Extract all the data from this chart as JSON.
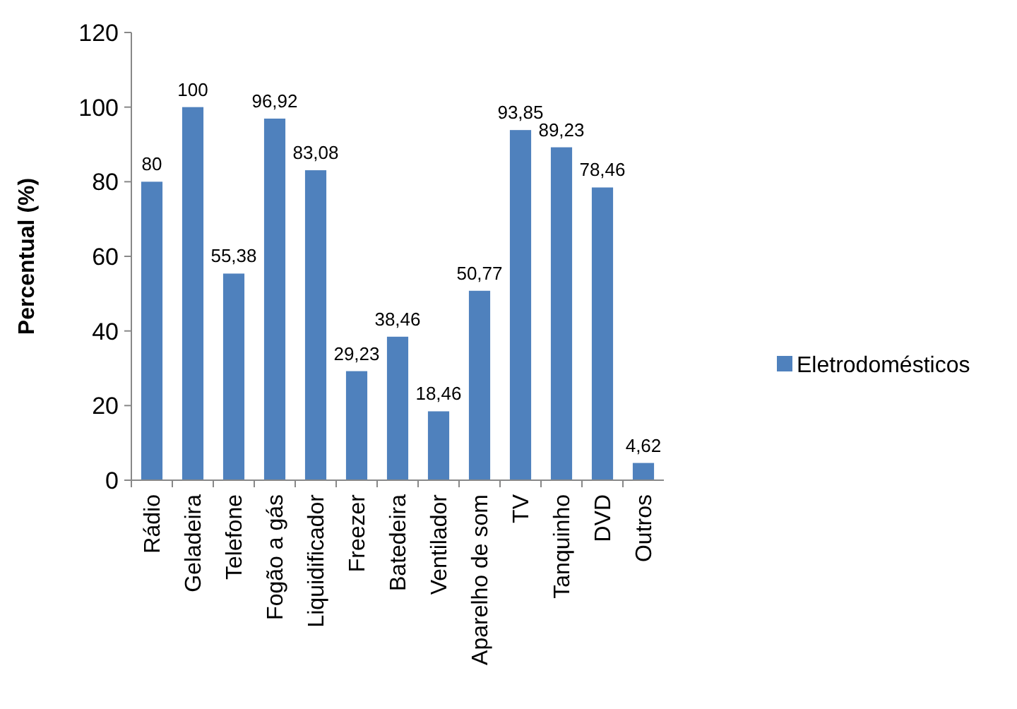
{
  "chart_data": {
    "type": "bar",
    "ylabel": "Percentual (%)",
    "categories": [
      "Rádio",
      "Geladeira",
      "Telefone",
      "Fogão a gás",
      "Liquidificador",
      "Freezer",
      "Batedeira",
      "Ventilador",
      "Aparelho de som",
      "TV",
      "Tanquinho",
      "DVD",
      "Outros"
    ],
    "series": [
      {
        "name": "Eletrodomésticos",
        "color": "#4f81bd",
        "values": [
          80,
          100,
          55.38,
          96.92,
          83.08,
          29.23,
          38.46,
          18.46,
          50.77,
          93.85,
          89.23,
          78.46,
          4.62
        ],
        "value_labels": [
          "80",
          "100",
          "55,38",
          "96,92",
          "83,08",
          "29,23",
          "38,46",
          "18,46",
          "50,77",
          "93,85",
          "89,23",
          "78,46",
          "4,62"
        ]
      }
    ],
    "ylim": [
      0,
      120
    ],
    "yticks": [
      0,
      20,
      40,
      60,
      80,
      100,
      120
    ],
    "grid": false,
    "legend": "right"
  }
}
